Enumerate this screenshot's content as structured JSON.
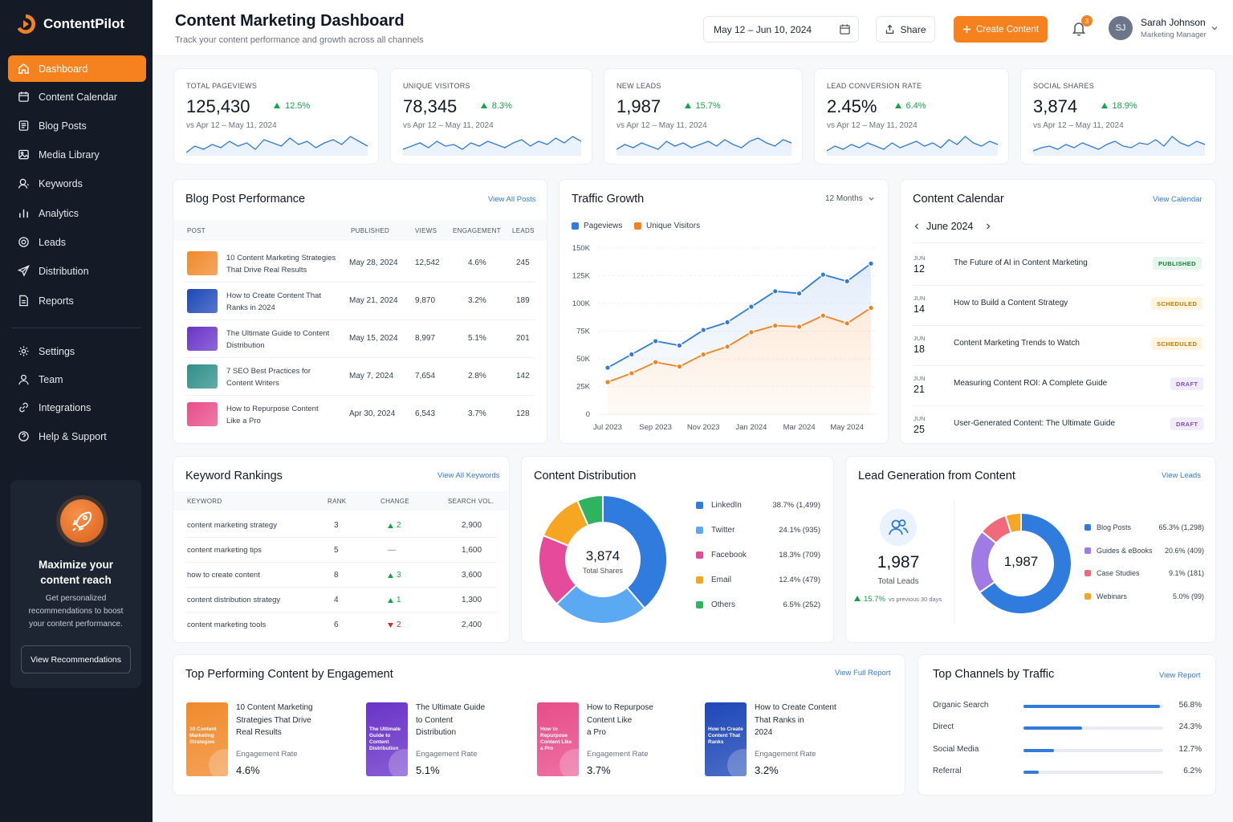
{
  "app": {
    "name": "ContentPilot"
  },
  "sidebar": {
    "items": [
      {
        "label": "Dashboard",
        "icon": "home-icon",
        "active": true
      },
      {
        "label": "Content Calendar",
        "icon": "calendar-icon"
      },
      {
        "label": "Blog Posts",
        "icon": "document-icon"
      },
      {
        "label": "Media Library",
        "icon": "image-icon"
      },
      {
        "label": "Keywords",
        "icon": "key-icon"
      },
      {
        "label": "Analytics",
        "icon": "bar-chart-icon"
      },
      {
        "label": "Leads",
        "icon": "target-icon"
      },
      {
        "label": "Distribution",
        "icon": "send-icon"
      },
      {
        "label": "Reports",
        "icon": "report-icon"
      }
    ],
    "secondary": [
      {
        "label": "Settings",
        "icon": "gear-icon"
      },
      {
        "label": "Team",
        "icon": "user-icon"
      },
      {
        "label": "Integrations",
        "icon": "link-icon"
      },
      {
        "label": "Help & Support",
        "icon": "help-icon"
      }
    ],
    "promo": {
      "title": "Maximize your content reach",
      "text": "Get personalized recommendations to boost your content performance.",
      "button": "View Recommendations",
      "icon": "rocket-icon"
    }
  },
  "header": {
    "title": "Content Marketing Dashboard",
    "subtitle": "Track your content performance and growth across all channels",
    "date_range": "May 12 – Jun 10, 2024",
    "share_label": "Share",
    "create_label": "Create Content",
    "notifications": "3",
    "user": {
      "initials": "SJ",
      "name": "Sarah Johnson",
      "role": "Marketing Manager"
    }
  },
  "kpis": [
    {
      "label": "TOTAL PAGEVIEWS",
      "value": "125,430",
      "change": "12.5%",
      "vs": "vs Apr 12 – May 11, 2024"
    },
    {
      "label": "UNIQUE VISITORS",
      "value": "78,345",
      "change": "8.3%",
      "vs": "vs Apr 12 – May 11, 2024"
    },
    {
      "label": "NEW LEADS",
      "value": "1,987",
      "change": "15.7%",
      "vs": "vs Apr 12 – May 11, 2024"
    },
    {
      "label": "LEAD CONVERSION RATE",
      "value": "2.45%",
      "change": "6.4%",
      "vs": "vs Apr 12 – May 11, 2024"
    },
    {
      "label": "SOCIAL SHARES",
      "value": "3,874",
      "change": "18.9%",
      "vs": "vs Apr 12 – May 11, 2024"
    }
  ],
  "blog": {
    "title": "Blog Post Performance",
    "link": "View All Posts",
    "headers": [
      "POST",
      "PUBLISHED",
      "VIEWS",
      "ENGAGEMENT",
      "LEADS"
    ],
    "rows": [
      {
        "line1": "10 Content Marketing Strategies",
        "line2": "That Drive Real Results",
        "published": "May 28, 2024",
        "views": "12,542",
        "engagement": "4.6%",
        "leads": "245",
        "color": "#f08a2c"
      },
      {
        "line1": "How to Create Content That",
        "line2": "Ranks in 2024",
        "published": "May 21, 2024",
        "views": "9,870",
        "engagement": "3.2%",
        "leads": "189",
        "color": "#1e48b8"
      },
      {
        "line1": "The Ultimate Guide to Content",
        "line2": "Distribution",
        "published": "May 15, 2024",
        "views": "8,997",
        "engagement": "5.1%",
        "leads": "201",
        "color": "#6a34c8"
      },
      {
        "line1": "7 SEO Best Practices for",
        "line2": "Content Writers",
        "published": "May 7, 2024",
        "views": "7,654",
        "engagement": "2.8%",
        "leads": "142",
        "color": "#2f8f8a"
      },
      {
        "line1": "How to Repurpose Content",
        "line2": "Like a Pro",
        "published": "Apr 30, 2024",
        "views": "6,543",
        "engagement": "3.7%",
        "leads": "128",
        "color": "#e84d8a"
      }
    ]
  },
  "traffic": {
    "title": "Traffic Growth",
    "range": "12 Months",
    "chart_data": {
      "type": "line",
      "categories": [
        "Jul 2023",
        "Aug 2023",
        "Sep 2023",
        "Oct 2023",
        "Nov 2023",
        "Dec 2023",
        "Jan 2024",
        "Feb 2024",
        "Mar 2024",
        "Apr 2024",
        "May 2024",
        "Jun 2024"
      ],
      "x_tick_labels": [
        "Jul 2023",
        "Sep 2023",
        "Nov 2023",
        "Jan 2024",
        "Mar 2024",
        "May 2024"
      ],
      "y_ticks": [
        "150K",
        "125K",
        "100K",
        "75K",
        "50K",
        "25K",
        "0"
      ],
      "ylim": [
        0,
        150000
      ],
      "series": [
        {
          "name": "Pageviews",
          "color": "#2f7bde",
          "values": [
            42000,
            54000,
            66000,
            62000,
            76000,
            83000,
            97000,
            111000,
            109000,
            126000,
            120000,
            136000
          ]
        },
        {
          "name": "Unique Visitors",
          "color": "#f5821f",
          "values": [
            29000,
            37000,
            47000,
            43000,
            54000,
            61000,
            74000,
            80000,
            79000,
            89000,
            82000,
            96000
          ]
        }
      ],
      "grid": true,
      "legend": "top-left"
    }
  },
  "calendar": {
    "title": "Content Calendar",
    "link": "View Calendar",
    "month": "June 2024",
    "items": [
      {
        "mon": "JUN",
        "day": "12",
        "title": "The Future of AI in Content Marketing",
        "status": "PUBLISHED"
      },
      {
        "mon": "JUN",
        "day": "14",
        "title": "How to Build a Content Strategy",
        "status": "SCHEDULED"
      },
      {
        "mon": "JUN",
        "day": "18",
        "title": "Content Marketing Trends to Watch",
        "status": "SCHEDULED"
      },
      {
        "mon": "JUN",
        "day": "21",
        "title": "Measuring Content ROI: A Complete Guide",
        "status": "DRAFT"
      },
      {
        "mon": "JUN",
        "day": "25",
        "title": "User-Generated Content: The Ultimate Guide",
        "status": "DRAFT"
      }
    ]
  },
  "keywords": {
    "title": "Keyword Rankings",
    "link": "View All Keywords",
    "headers": [
      "KEYWORD",
      "RANK",
      "CHANGE",
      "SEARCH VOL."
    ],
    "rows": [
      {
        "keyword": "content marketing strategy",
        "rank": "3",
        "change": "2",
        "dir": "up",
        "vol": "2,900"
      },
      {
        "keyword": "content marketing tips",
        "rank": "5",
        "change": "—",
        "dir": "flat",
        "vol": "1,600"
      },
      {
        "keyword": "how to create content",
        "rank": "8",
        "change": "3",
        "dir": "up",
        "vol": "3,600"
      },
      {
        "keyword": "content distribution strategy",
        "rank": "4",
        "change": "1",
        "dir": "up",
        "vol": "1,300"
      },
      {
        "keyword": "content marketing tools",
        "rank": "6",
        "change": "2",
        "dir": "down",
        "vol": "2,400"
      }
    ]
  },
  "distribution": {
    "title": "Content Distribution",
    "total": "3,874",
    "total_label": "Total Shares",
    "chart_data": {
      "type": "pie",
      "slices": [
        {
          "name": "LinkedIn",
          "label": "38.7% (1,499)",
          "value": 38.7,
          "color": "#2f7bde"
        },
        {
          "name": "Twitter",
          "label": "24.1% (935)",
          "value": 24.1,
          "color": "#5aa9f2"
        },
        {
          "name": "Facebook",
          "label": "18.3% (709)",
          "value": 18.3,
          "color": "#e64b9b"
        },
        {
          "name": "Email",
          "label": "12.4% (479)",
          "value": 12.4,
          "color": "#f6a623"
        },
        {
          "name": "Others",
          "label": "6.5% (252)",
          "value": 6.5,
          "color": "#2fb35e"
        }
      ]
    }
  },
  "leadgen": {
    "title": "Lead Generation from Content",
    "link": "View Leads",
    "total": "1,987",
    "total_label": "Total Leads",
    "change": "15.7%",
    "change_note": "vs previous 30 days",
    "icon": "users-icon",
    "chart_data": {
      "type": "pie",
      "slices": [
        {
          "name": "Blog Posts",
          "label": "65.3% (1,298)",
          "value": 65.3,
          "color": "#2f7bde"
        },
        {
          "name": "Guides & eBooks",
          "label": "20.6% (409)",
          "value": 20.6,
          "color": "#a07be6"
        },
        {
          "name": "Case Studies",
          "label": "9.1% (181)",
          "value": 9.1,
          "color": "#f06a7a"
        },
        {
          "name": "Webinars",
          "label": "5.0% (99)",
          "value": 5.0,
          "color": "#f6a623"
        }
      ]
    }
  },
  "top_content": {
    "title": "Top Performing Content by Engagement",
    "link": "View Full Report",
    "metric_label": "Engagement Rate",
    "items": [
      {
        "line1": "10 Content Marketing",
        "line2": "Strategies That Drive",
        "line3": "Real Results",
        "rate": "4.6%",
        "color": "#f08a2c",
        "cover_text": "10 Content Marketing Strategies"
      },
      {
        "line1": "The Ultimate Guide",
        "line2": "to Content",
        "line3": "Distribution",
        "rate": "5.1%",
        "color": "#6a34c8",
        "cover_text": "The Ultimate Guide to Content Distribution"
      },
      {
        "line1": "How to Repurpose",
        "line2": "Content Like",
        "line3": "a Pro",
        "rate": "3.7%",
        "color": "#e84d8a",
        "cover_text": "How to Repurpose Content Like a Pro"
      },
      {
        "line1": "How to Create Content",
        "line2": "That Ranks in",
        "line3": "2024",
        "rate": "3.2%",
        "color": "#1e48b8",
        "cover_text": "How to Create Content That Ranks"
      }
    ]
  },
  "channels": {
    "title": "Top Channels by Traffic",
    "link": "View Report",
    "items": [
      {
        "name": "Organic Search",
        "value": 56.8,
        "label": "56.8%"
      },
      {
        "name": "Direct",
        "value": 24.3,
        "label": "24.3%"
      },
      {
        "name": "Social Media",
        "value": 12.7,
        "label": "12.7%"
      },
      {
        "name": "Referral",
        "value": 6.2,
        "label": "6.2%"
      }
    ]
  }
}
